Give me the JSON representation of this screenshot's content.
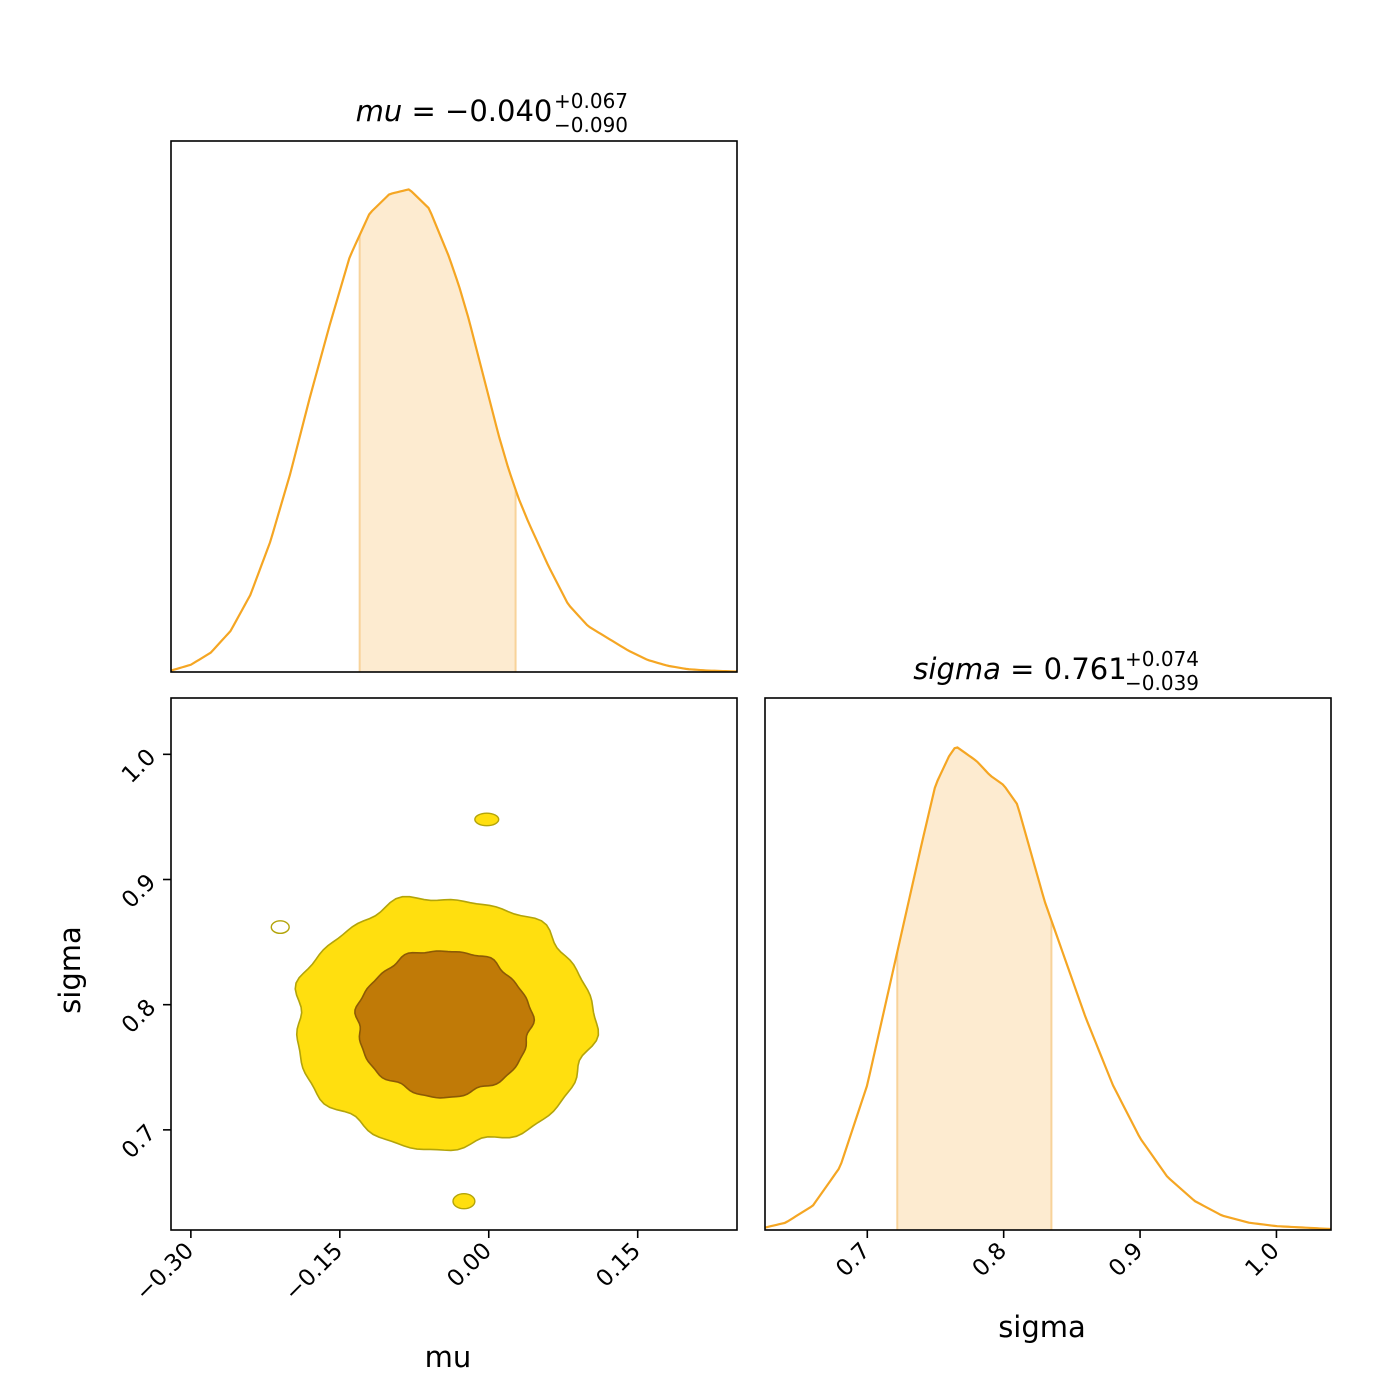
{
  "colors": {
    "line": "#f5a623",
    "band": "#fdebd0",
    "band_edge": "#f8d39a",
    "contour_outer": "#ffdf0f",
    "contour_inner": "#c07a07",
    "contour_edge": "#b3a40a",
    "contour_inner_edge": "#8c5a05"
  },
  "chart_data": [
    {
      "type": "line",
      "panel": "mu-marginal",
      "title": {
        "param": "mu",
        "eq": " = ",
        "value": "−0.040",
        "plus": "+0.067",
        "minus": "−0.090"
      },
      "xlim": [
        -0.32,
        0.25
      ],
      "ylim": [
        0,
        1.1
      ],
      "x": [
        -0.32,
        -0.3,
        -0.28,
        -0.26,
        -0.24,
        -0.22,
        -0.2,
        -0.18,
        -0.16,
        -0.14,
        -0.12,
        -0.1,
        -0.08,
        -0.06,
        -0.04,
        -0.03,
        -0.02,
        -0.01,
        0.0,
        0.01,
        0.02,
        0.03,
        0.04,
        0.06,
        0.08,
        0.1,
        0.12,
        0.14,
        0.16,
        0.18,
        0.2,
        0.22,
        0.25
      ],
      "y": [
        0.0,
        0.01,
        0.03,
        0.06,
        0.12,
        0.23,
        0.38,
        0.56,
        0.75,
        0.92,
        1.0,
        0.97,
        0.89,
        0.83,
        0.79,
        0.76,
        0.72,
        0.67,
        0.61,
        0.55,
        0.48,
        0.43,
        0.38,
        0.28,
        0.19,
        0.13,
        0.09,
        0.06,
        0.04,
        0.03,
        0.02,
        0.01,
        0.0
      ],
      "y_density": [
        0.003,
        0.015,
        0.04,
        0.085,
        0.16,
        0.27,
        0.41,
        0.57,
        0.72,
        0.86,
        0.95,
        0.99,
        1.0,
        0.96,
        0.86,
        0.8,
        0.73,
        0.65,
        0.57,
        0.49,
        0.42,
        0.36,
        0.31,
        0.22,
        0.14,
        0.095,
        0.07,
        0.045,
        0.025,
        0.013,
        0.006,
        0.003,
        0.001
      ],
      "band": [
        -0.13,
        0.027
      ]
    },
    {
      "type": "line",
      "panel": "sigma-marginal",
      "title": {
        "param": "sigma",
        "eq": " = ",
        "value": "0.761",
        "plus": "+0.074",
        "minus": "−0.039"
      },
      "xlim": [
        0.625,
        1.04
      ],
      "ylim": [
        0,
        1.1
      ],
      "x": [
        0.625,
        0.64,
        0.66,
        0.68,
        0.7,
        0.72,
        0.74,
        0.75,
        0.76,
        0.765,
        0.78,
        0.79,
        0.8,
        0.81,
        0.82,
        0.83,
        0.84,
        0.85,
        0.86,
        0.88,
        0.9,
        0.92,
        0.94,
        0.96,
        0.98,
        1.0,
        1.04
      ],
      "y": [
        0.005,
        0.015,
        0.05,
        0.13,
        0.3,
        0.55,
        0.8,
        0.92,
        0.98,
        1.0,
        0.97,
        0.94,
        0.92,
        0.88,
        0.78,
        0.68,
        0.6,
        0.52,
        0.44,
        0.3,
        0.19,
        0.11,
        0.06,
        0.03,
        0.015,
        0.008,
        0.002
      ],
      "band": [
        0.722,
        0.835
      ]
    },
    {
      "type": "contour",
      "panel": "mu-sigma-joint",
      "xlim": [
        -0.32,
        0.25
      ],
      "ylim": [
        0.62,
        1.045
      ],
      "center": [
        -0.045,
        0.785
      ],
      "sigma_x": 0.075,
      "sigma_y": 0.05,
      "levels": [
        "inner",
        "outer"
      ]
    }
  ],
  "axes": {
    "mu": {
      "label": "mu",
      "ticks": [
        -0.3,
        -0.15,
        0.0,
        0.15
      ],
      "tick_labels": [
        "−0.30",
        "−0.15",
        "0.00",
        "0.15"
      ]
    },
    "sigma_left": {
      "label": "sigma",
      "ticks": [
        0.7,
        0.8,
        0.9,
        1.0
      ],
      "tick_labels": [
        "0.7",
        "0.8",
        "0.9",
        "1.0"
      ]
    },
    "sigma_bottom": {
      "label": "sigma",
      "ticks": [
        0.7,
        0.8,
        0.9,
        1.0
      ],
      "tick_labels": [
        "0.7",
        "0.8",
        "0.9",
        "1.0"
      ]
    }
  }
}
